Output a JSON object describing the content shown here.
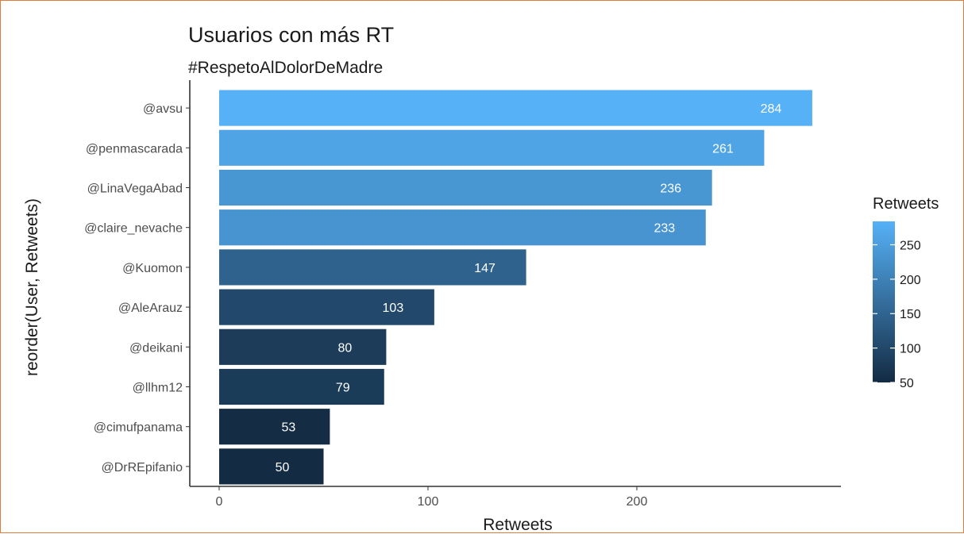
{
  "chart_data": {
    "type": "bar",
    "orientation": "horizontal",
    "title": "Usuarios con más RT",
    "subtitle": "#RespetoAlDolorDeMadre",
    "xlabel": "Retweets",
    "ylabel": "reorder(User, Retweets)",
    "categories": [
      "@avsu",
      "@penmascarada",
      "@LinaVegaAbad",
      "@claire_nevache",
      "@Kuomon",
      "@AleArauz",
      "@deikani",
      "@llhm12",
      "@cimufpanama",
      "@DrREpifanio"
    ],
    "values": [
      284,
      261,
      236,
      233,
      147,
      103,
      80,
      79,
      53,
      50
    ],
    "data_labels": [
      "284",
      "261",
      "236",
      "233",
      "147",
      "103",
      "80",
      "79",
      "53",
      "50"
    ],
    "xlim": [
      -14,
      295
    ],
    "x_ticks": [
      0,
      100,
      200
    ],
    "x_tick_labels": [
      "0",
      "100",
      "200"
    ],
    "grid": false,
    "legend": {
      "title": "Retweets",
      "placement": "right",
      "type": "colorbar",
      "range": [
        50,
        284
      ],
      "ticks": [
        50,
        100,
        150,
        200,
        250
      ],
      "tick_labels": [
        "50",
        "100",
        "150",
        "200",
        "250"
      ],
      "low_color": "#132b43",
      "high_color": "#56b1f7"
    }
  }
}
